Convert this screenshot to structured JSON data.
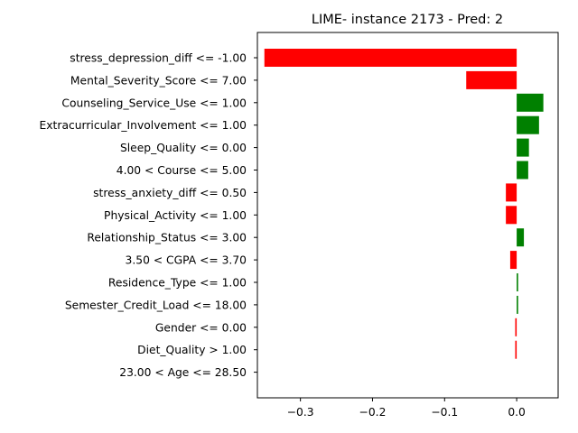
{
  "chart_data": {
    "type": "bar",
    "orientation": "horizontal",
    "title": "LIME- instance 2173 - Pred: 2",
    "xlabel": "",
    "ylabel": "",
    "xlim": [
      -0.3597,
      0.0575
    ],
    "xticks": [
      -0.3,
      -0.2,
      -0.1,
      0.0
    ],
    "xtick_labels": [
      "−0.3",
      "−0.2",
      "−0.1",
      "0.0"
    ],
    "grid": false,
    "legend": "none",
    "colors": {
      "negative": "#ff0000",
      "positive": "#008000"
    },
    "categories": [
      "stress_depression_diff <= -1.00",
      "Mental_Severity_Score <= 7.00",
      "Counseling_Service_Use <= 1.00",
      "Extracurricular_Involvement <= 1.00",
      "Sleep_Quality <= 0.00",
      "4.00 < Course <= 5.00",
      "stress_anxiety_diff <= 0.50",
      "Physical_Activity <= 1.00",
      "Relationship_Status <= 3.00",
      "3.50 < CGPA <= 3.70",
      "Residence_Type <= 1.00",
      "Semester_Credit_Load <= 18.00",
      "Gender <= 0.00",
      "Diet_Quality > 1.00",
      "23.00 < Age <= 28.50"
    ],
    "values": [
      -0.35,
      -0.07,
      0.037,
      0.031,
      0.017,
      0.016,
      -0.015,
      -0.015,
      0.01,
      -0.009,
      0.002,
      0.002,
      -0.002,
      -0.002,
      0.0
    ]
  }
}
